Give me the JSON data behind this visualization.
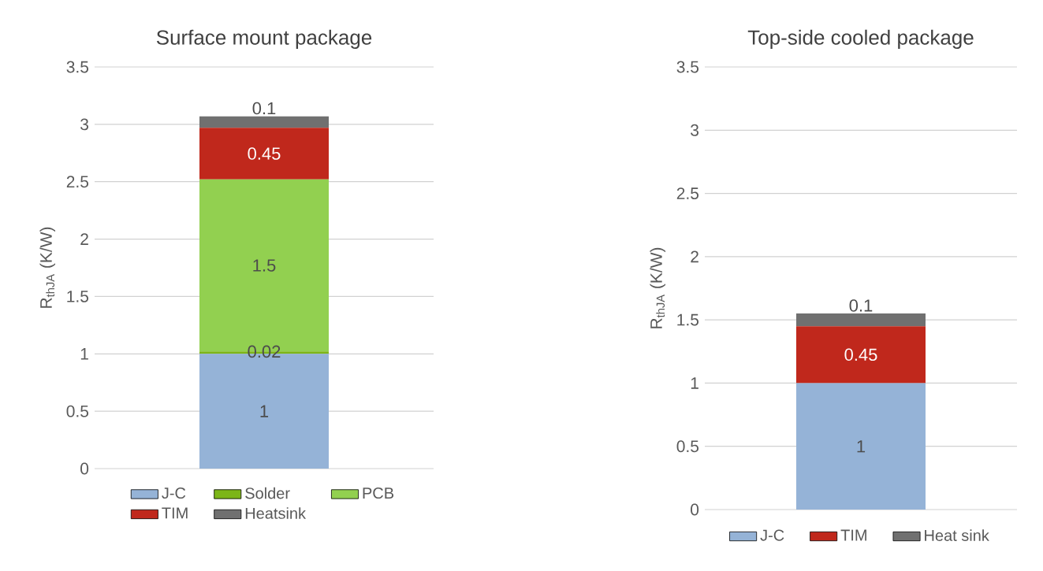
{
  "chart_data": [
    {
      "type": "bar",
      "title": "Surface mount package",
      "ylabel": "R$_{thJA}$ (K/W)",
      "categories": [
        null
      ],
      "stacked": true,
      "data_labels": true,
      "grid": "y",
      "legend": "bottom",
      "ylim": [
        0,
        3.5
      ],
      "yticks": [
        0,
        0.5,
        1,
        1.5,
        2,
        2.5,
        3,
        3.5
      ],
      "series": [
        {
          "name": "J-C",
          "color": "#95b3d7",
          "values": [
            1
          ]
        },
        {
          "name": "Solder",
          "color": "#7cb518",
          "values": [
            0.02
          ]
        },
        {
          "name": "PCB",
          "color": "#92d050",
          "values": [
            1.5
          ]
        },
        {
          "name": "TIM",
          "color": "#c0281c",
          "values": [
            0.45
          ]
        },
        {
          "name": "Heatsink",
          "color": "#707070",
          "values": [
            0.1
          ]
        }
      ]
    },
    {
      "type": "bar",
      "title": "Top-side cooled package",
      "ylabel": "R$_{thJA}$ (K/W)",
      "categories": [
        null
      ],
      "stacked": true,
      "data_labels": true,
      "grid": "y",
      "legend": "bottom",
      "ylim": [
        0,
        3.5
      ],
      "yticks": [
        0,
        0.5,
        1,
        1.5,
        2,
        2.5,
        3,
        3.5
      ],
      "series": [
        {
          "name": "J-C",
          "color": "#95b3d7",
          "values": [
            1
          ]
        },
        {
          "name": "TIM",
          "color": "#c0281c",
          "values": [
            0.45
          ]
        },
        {
          "name": "Heat sink",
          "color": "#707070",
          "values": [
            0.1
          ]
        }
      ]
    }
  ]
}
